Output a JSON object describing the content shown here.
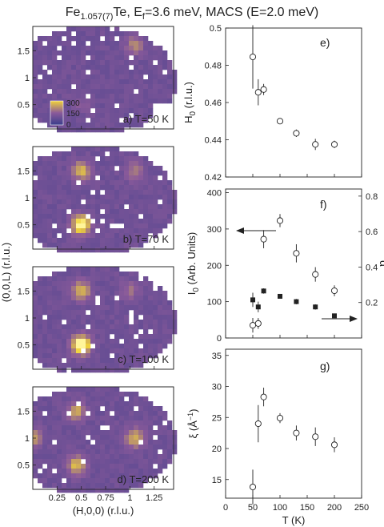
{
  "title": {
    "prefix": "Fe",
    "sub": "1.057(7)",
    "mid": "Te, E",
    "sub2": "f",
    "suffix": "=3.6 meV, MACS (E=2.0 meV)"
  },
  "colors": {
    "low": "#3a3d8c",
    "mid": "#8a5a9a",
    "high": "#f0d23a",
    "peak": "#fff59a",
    "marker": "#222222"
  },
  "heatmaps": {
    "xlabel": "(H,0,0) (r.l.u.)",
    "ylabel": "(0,0,L) (r.l.u.)",
    "xticks": [
      "0.25",
      "0.5",
      "0.75",
      "1",
      "1.25"
    ],
    "xtick_values": [
      0.25,
      0.5,
      0.75,
      1.0,
      1.25
    ],
    "yticks": [
      "0.5",
      "1",
      "1.5"
    ],
    "ytick_values": [
      0.5,
      1.0,
      1.5
    ],
    "xlim": [
      0.0,
      1.45
    ],
    "ylim": [
      0.05,
      1.95
    ],
    "colorbar": {
      "labels": [
        "300",
        "150",
        "0"
      ],
      "values": [
        300,
        150,
        0
      ]
    },
    "panels": [
      {
        "label": "a) T=50 K",
        "T": 50,
        "peaks": [
          {
            "h": 0.5,
            "l": 0.5,
            "intensity": 0.15
          },
          {
            "h": 1.05,
            "l": 1.6,
            "intensity": 0.35
          }
        ]
      },
      {
        "label": "b) T=70 K",
        "T": 70,
        "peaks": [
          {
            "h": 0.5,
            "l": 0.5,
            "intensity": 1.0
          },
          {
            "h": 0.5,
            "l": 1.5,
            "intensity": 0.55
          },
          {
            "h": 1.05,
            "l": 1.5,
            "intensity": 0.3
          }
        ]
      },
      {
        "label": "c) T=100 K",
        "T": 100,
        "peaks": [
          {
            "h": 0.5,
            "l": 0.5,
            "intensity": 1.1
          },
          {
            "h": 0.5,
            "l": 1.5,
            "intensity": 0.6
          },
          {
            "h": 1.0,
            "l": 1.5,
            "intensity": 0.25
          }
        ]
      },
      {
        "label": "d) T=200 K",
        "T": 200,
        "peaks": [
          {
            "h": 0.45,
            "l": 0.5,
            "intensity": 0.6
          },
          {
            "h": 0.45,
            "l": 1.5,
            "intensity": 0.5
          },
          {
            "h": 1.05,
            "l": 1.0,
            "intensity": 0.55
          },
          {
            "h": 0.0,
            "l": 1.0,
            "intensity": 0.45
          }
        ]
      }
    ]
  },
  "chart_data": [
    {
      "type": "scatter",
      "panel_label": "e)",
      "x": [
        50,
        60,
        70,
        100,
        130,
        165,
        200
      ],
      "y": [
        0.4845,
        0.4655,
        0.467,
        0.45,
        0.4435,
        0.4375,
        0.4375
      ],
      "yerr": [
        0.017,
        0.007,
        0.003,
        0.001,
        0.002,
        0.003,
        0.002
      ],
      "ylabel_main": "H",
      "ylabel_sub": "0",
      "ylabel_rest": " (r.l.u.)",
      "xlim": [
        0,
        250
      ],
      "ylim": [
        0.42,
        0.5
      ],
      "yticks": [
        "0.42",
        "0.44",
        "0.46",
        "0.48",
        "0.5"
      ],
      "ytick_values": [
        0.42,
        0.44,
        0.46,
        0.48,
        0.5
      ]
    },
    {
      "type": "scatter",
      "panel_label": "f)",
      "series": [
        {
          "marker": "open-circle",
          "axis": "left",
          "x": [
            50,
            60,
            70,
            100,
            130,
            165,
            200
          ],
          "y": [
            35,
            40,
            272,
            323,
            233,
            175,
            130
          ],
          "yerr": [
            20,
            15,
            25,
            18,
            25,
            20,
            15
          ]
        },
        {
          "marker": "filled-square",
          "axis": "right",
          "x": [
            50,
            60,
            70,
            100,
            130,
            165,
            200
          ],
          "y": [
            0.215,
            0.175,
            0.265,
            0.235,
            0.205,
            0.175,
            0.125
          ],
          "yerr": [
            0.04,
            0.03,
            0.015,
            0.01,
            0.015,
            0.015,
            0.01
          ]
        }
      ],
      "ylabel_main": "I",
      "ylabel_sub": "0",
      "ylabel_rest": " (Arb. Units)",
      "ylabel_right": "α",
      "xlim": [
        0,
        250
      ],
      "ylim": [
        0,
        410
      ],
      "ylim_right": [
        0,
        0.84
      ],
      "yticks": [
        "0",
        "100",
        "200",
        "300",
        "400"
      ],
      "ytick_values": [
        0,
        100,
        200,
        300,
        400
      ],
      "yticks_right": [
        "0.2",
        "0.4",
        "0.6",
        "0.8"
      ],
      "ytick_values_right": [
        0.2,
        0.4,
        0.6,
        0.8
      ]
    },
    {
      "type": "scatter",
      "panel_label": "g)",
      "x": [
        50,
        60,
        70,
        100,
        130,
        165,
        200
      ],
      "y": [
        13.8,
        24.0,
        28.3,
        24.9,
        22.5,
        21.9,
        20.6
      ],
      "yerr": [
        2.8,
        3.0,
        1.5,
        0.8,
        1.2,
        1.5,
        1.2
      ],
      "ylabel_main": "ξ (Å",
      "ylabel_sup": "−1",
      "ylabel_rest": ")",
      "xlabel": "T (K)",
      "xlim": [
        0,
        250
      ],
      "ylim": [
        12,
        36
      ],
      "yticks": [
        "15",
        "20",
        "25",
        "30",
        "35"
      ],
      "ytick_values": [
        15,
        20,
        25,
        30,
        35
      ],
      "xticks": [
        "0",
        "50",
        "100",
        "150",
        "200",
        "250"
      ],
      "xtick_values": [
        0,
        50,
        100,
        150,
        200,
        250
      ]
    }
  ]
}
